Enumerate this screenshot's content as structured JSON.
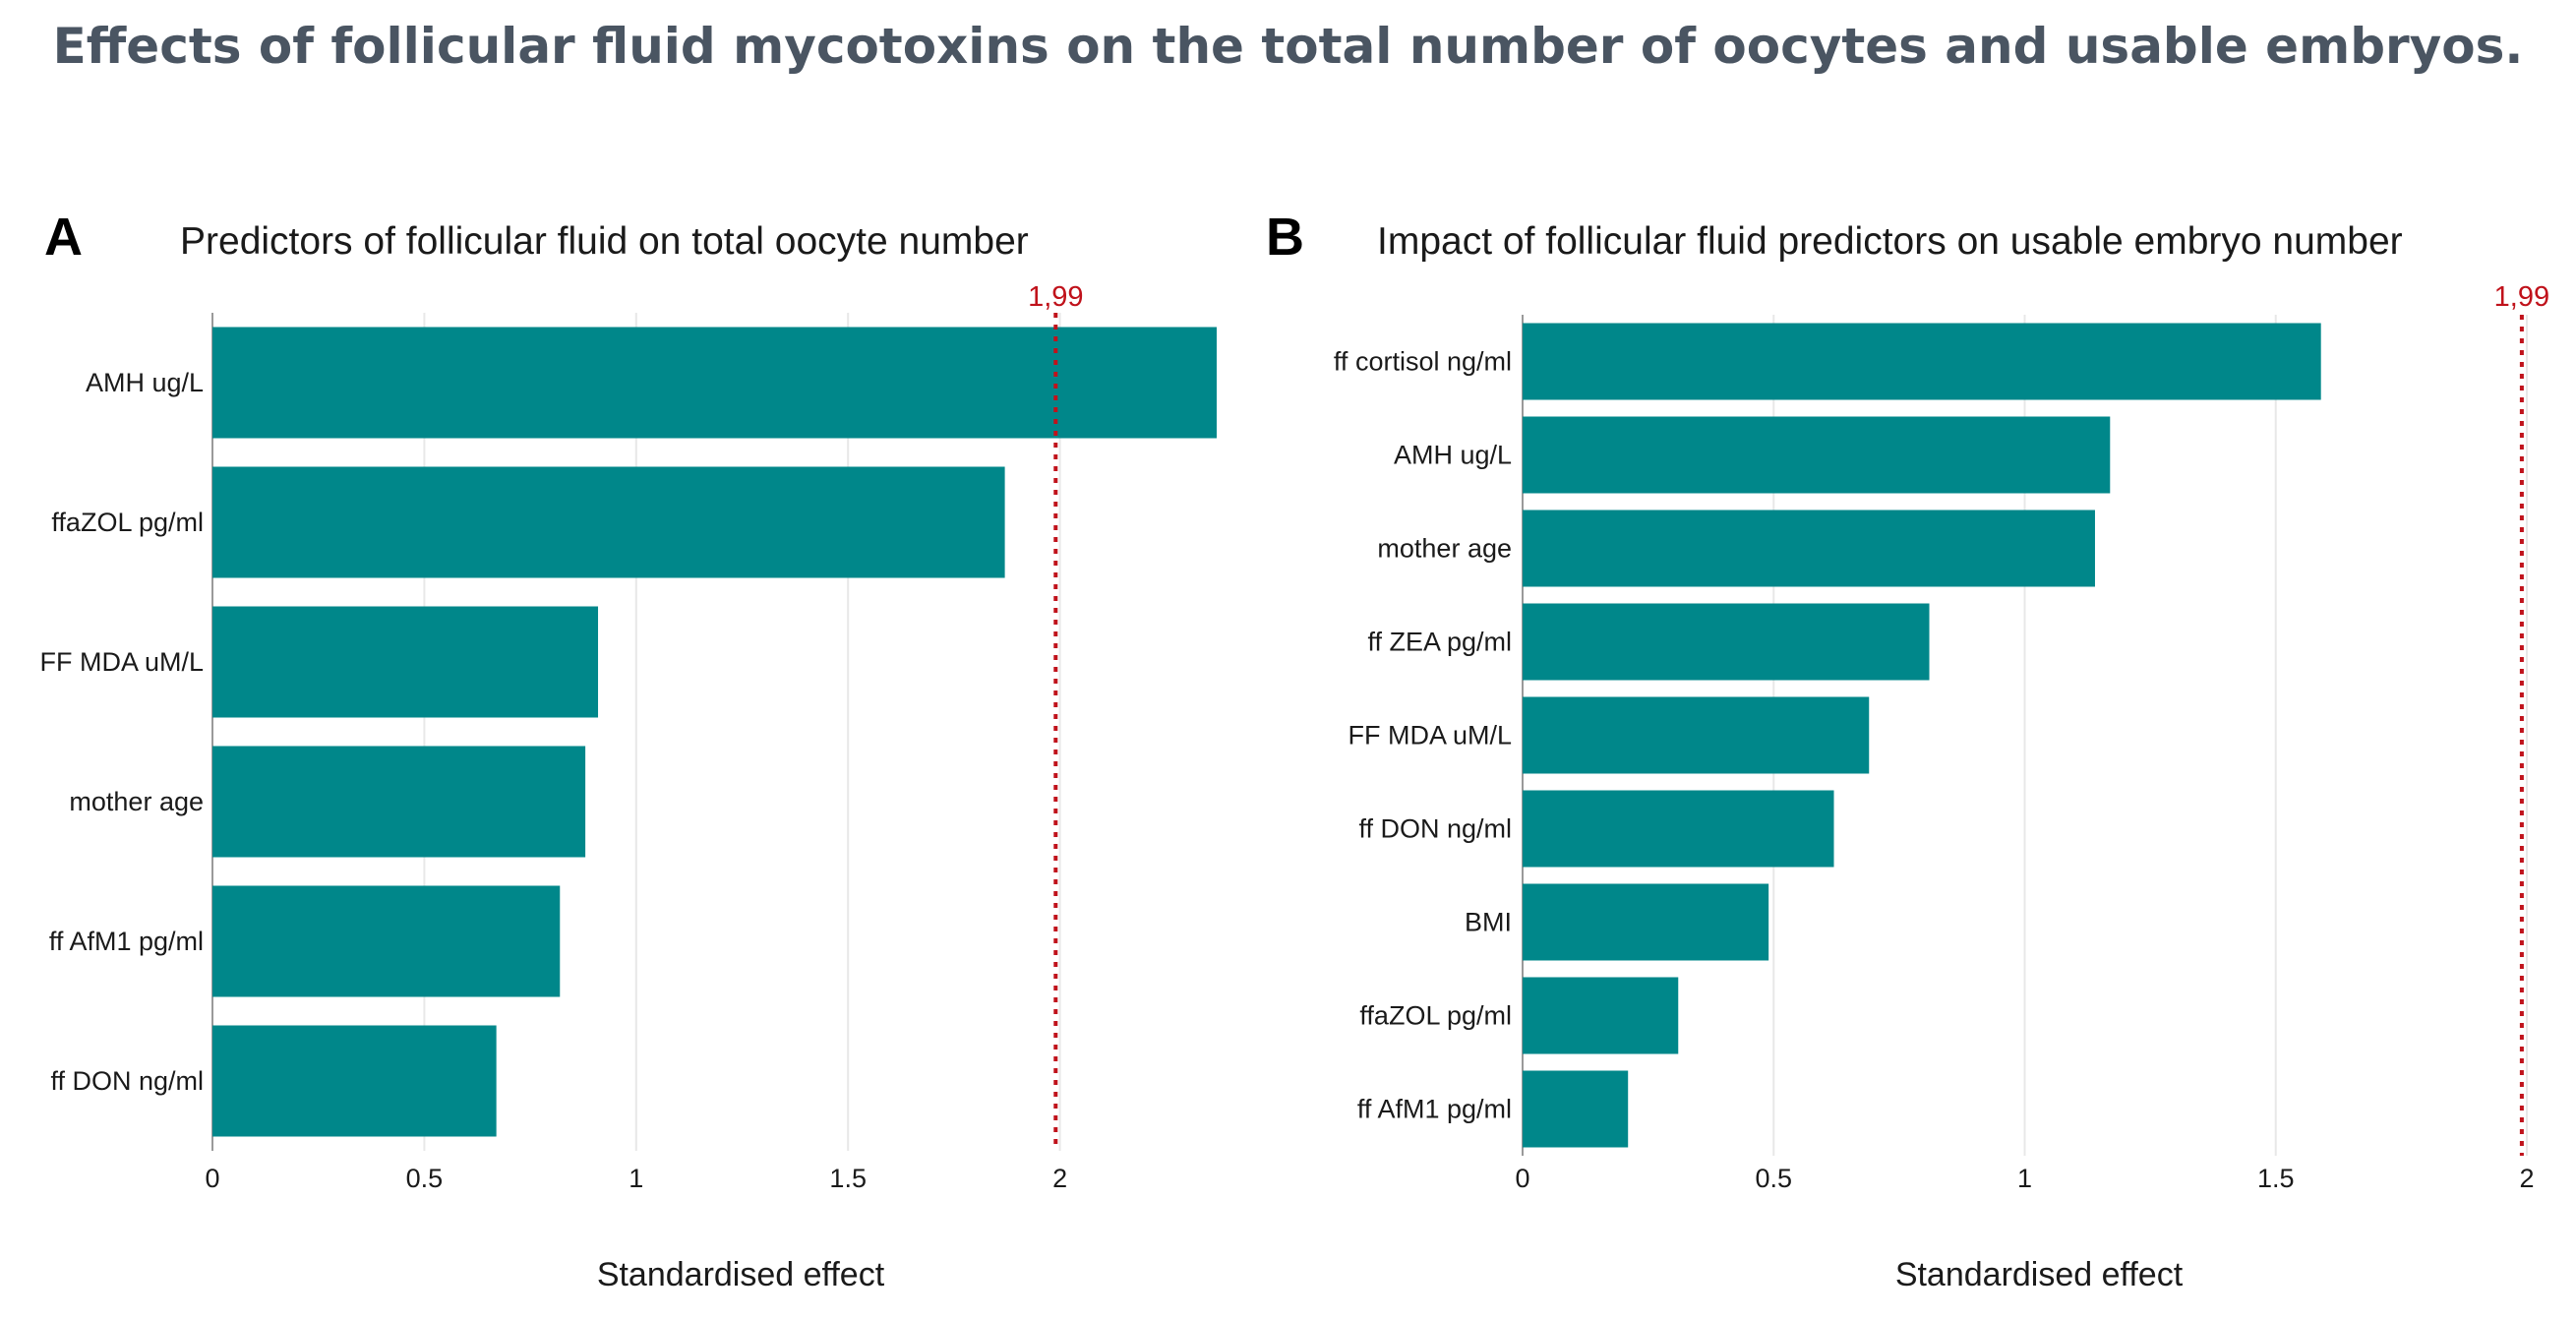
{
  "figure": {
    "title": "Effects of follicular fluid mycotoxins on the total number of oocytes and usable embryos."
  },
  "colors": {
    "bar": "#00878a",
    "threshold": "#c0121b",
    "grid": "#e8e8e8",
    "axis": "#9a9a9a",
    "title": "#4a5562"
  },
  "panels": [
    {
      "letter": "A",
      "title": "Predictors of follicular fluid on total oocyte number"
    },
    {
      "letter": "B",
      "title": "Impact of follicular fluid predictors on usable embryo number"
    }
  ],
  "chart_data": [
    {
      "type": "bar",
      "orientation": "horizontal",
      "title": "Predictors of follicular fluid on total oocyte number",
      "xlabel": "Standardised effect",
      "ylabel": "",
      "categories": [
        "AMH ug/L",
        "ffaZOL pg/ml",
        "FF MDA uM/L",
        "mother age",
        "ff AfM1 pg/ml",
        "ff DON ng/ml"
      ],
      "values": [
        2.37,
        1.87,
        0.91,
        0.88,
        0.82,
        0.67
      ],
      "xlim": [
        0,
        2.37
      ],
      "xticks": [
        0,
        0.5,
        1,
        1.5,
        2
      ],
      "xtick_labels": [
        "0",
        "0.5",
        "1",
        "1.5",
        "2"
      ],
      "threshold": {
        "value": 1.99,
        "label": "1,99"
      }
    },
    {
      "type": "bar",
      "orientation": "horizontal",
      "title": "Impact of follicular fluid predictors on usable embryo number",
      "xlabel": "Standardised effect",
      "ylabel": "",
      "categories": [
        "ff cortisol ng/ml",
        "AMH ug/L",
        "mother age",
        "ff ZEA pg/ml",
        "FF MDA uM/L",
        "ff DON ng/ml",
        "BMI",
        "ffaZOL pg/ml",
        "ff AfM1 pg/ml"
      ],
      "values": [
        1.59,
        1.17,
        1.14,
        0.81,
        0.69,
        0.62,
        0.49,
        0.31,
        0.21
      ],
      "xlim": [
        0,
        2
      ],
      "xticks": [
        0,
        0.5,
        1,
        1.5,
        2
      ],
      "xtick_labels": [
        "0",
        "0.5",
        "1",
        "1.5",
        "2"
      ],
      "threshold": {
        "value": 1.99,
        "label": "1,99"
      }
    }
  ]
}
